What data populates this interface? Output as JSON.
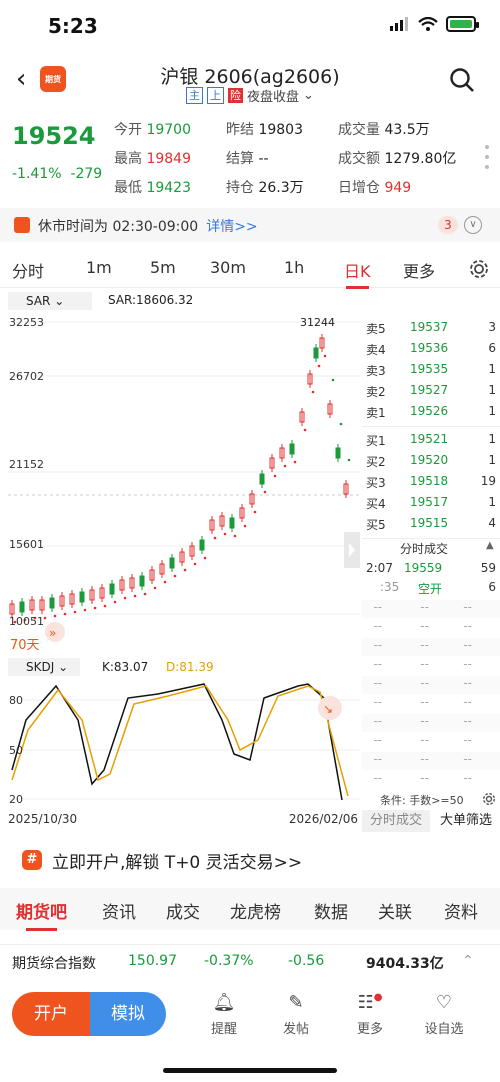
{
  "status": {
    "time": "5:23"
  },
  "header": {
    "app_logo": "期货",
    "title": "沪银 2606(ag2606)",
    "tag_main": "主",
    "tag_up": "上",
    "tag_risk": "险",
    "session": "夜盘收盘"
  },
  "quote": {
    "price": "19524",
    "change_pct": "-1.41%",
    "change": "-279",
    "open_label": "今开",
    "open": "19700",
    "high_label": "最高",
    "high": "19849",
    "low_label": "最低",
    "low": "19423",
    "prev_label": "昨结",
    "prev": "19803",
    "settle_label": "结算",
    "settle": "--",
    "oi_label": "持仓",
    "oi": "26.3万",
    "vol_label": "成交量",
    "vol": "43.5万",
    "amt_label": "成交额",
    "amt": "1279.80亿",
    "oi_chg_label": "日增仓",
    "oi_chg": "949"
  },
  "notice": {
    "text": "休市时间为 02:30-09:00",
    "link": "详情>>",
    "count": "3"
  },
  "tabs": [
    "分时",
    "1m",
    "5m",
    "30m",
    "1h",
    "日K",
    "更多"
  ],
  "ind1": {
    "name": "SAR",
    "value": "SAR:18606.32"
  },
  "kchart": {
    "yticks": [
      "32253",
      "26702",
      "21152",
      "15601",
      "10051"
    ],
    "max_label": "31244",
    "days": "70天"
  },
  "orderbook": {
    "asks": [
      {
        "n": "卖5",
        "p": "19537",
        "q": "3"
      },
      {
        "n": "卖4",
        "p": "19536",
        "q": "6"
      },
      {
        "n": "卖3",
        "p": "19535",
        "q": "1"
      },
      {
        "n": "卖2",
        "p": "19527",
        "q": "1"
      },
      {
        "n": "卖1",
        "p": "19526",
        "q": "1"
      }
    ],
    "bids": [
      {
        "n": "买1",
        "p": "19521",
        "q": "1"
      },
      {
        "n": "买2",
        "p": "19520",
        "q": "1"
      },
      {
        "n": "买3",
        "p": "19518",
        "q": "19"
      },
      {
        "n": "买4",
        "p": "19517",
        "q": "1"
      },
      {
        "n": "买5",
        "p": "19515",
        "q": "4"
      }
    ],
    "ticks_title": "分时成交",
    "tick1": {
      "t": "2:07",
      "p": "19559",
      "q": "59"
    },
    "tick2": {
      "t": ":35",
      "p": "空开",
      "q": "6"
    },
    "cond": "条件: 手数>=50",
    "tab_ticks": "分时成交",
    "tab_big": "大单筛选"
  },
  "ind2": {
    "name": "SKDJ",
    "k": "K:83.07",
    "d": "D:81.39",
    "yticks": [
      "80",
      "50",
      "20"
    ]
  },
  "dates": {
    "start": "2025/10/30",
    "end": "2026/02/06"
  },
  "promo": {
    "text": "立即开户,解锁 T+0 灵活交易>>"
  },
  "bottom_tabs": [
    "期货吧",
    "资讯",
    "成交",
    "龙虎榜",
    "数据",
    "关联",
    "资料"
  ],
  "index_row": {
    "name": "期货综合指数",
    "value": "150.97",
    "pct": "-0.37%",
    "chg": "-0.56",
    "amount": "9404.33亿"
  },
  "bottom_bar": {
    "open": "开户",
    "sim": "模拟",
    "remind": "提醒",
    "post": "发帖",
    "more": "更多",
    "watch": "设自选"
  },
  "colors": {
    "up": "#e03030",
    "down": "#1a9a3a",
    "accent": "#f0541e"
  }
}
